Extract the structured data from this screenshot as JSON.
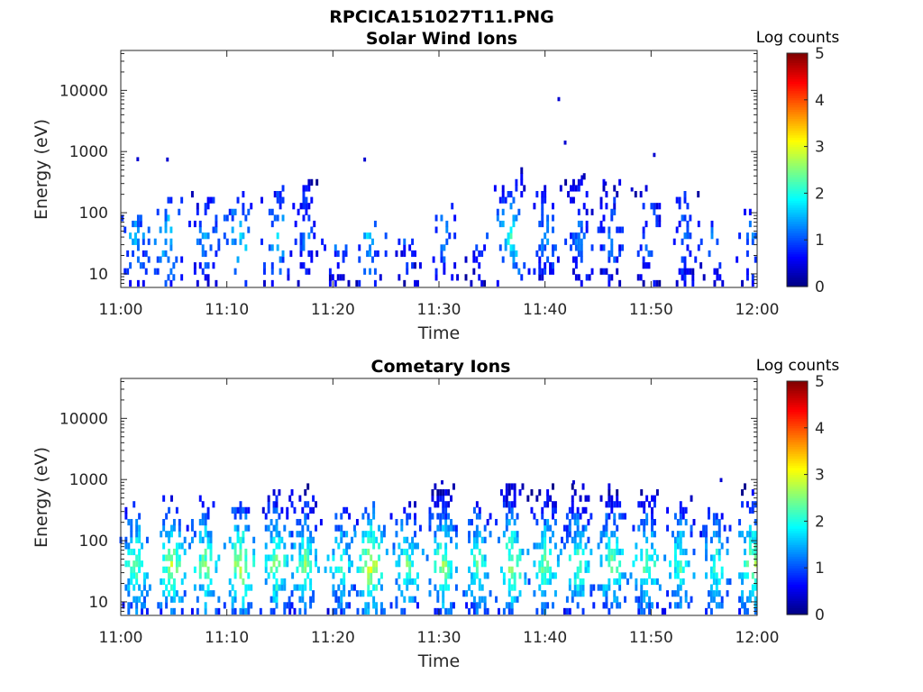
{
  "figure_title": "RPCICA151027T11.PNG",
  "chart_data": [
    {
      "type": "heatmap",
      "title": "Solar Wind Ions",
      "xlabel": "Time",
      "ylabel": "Energy (eV)",
      "x_ticks": [
        "11:00",
        "11:10",
        "11:20",
        "11:30",
        "11:40",
        "11:50",
        "12:00"
      ],
      "x_range_minutes": [
        0,
        60
      ],
      "y_scale": "log",
      "y_ticks": [
        "10",
        "100",
        "1000",
        "10000"
      ],
      "y_range": [
        6,
        45000
      ],
      "colorbar": {
        "label": "Log counts",
        "range": [
          0,
          5
        ],
        "ticks": [
          "0",
          "1",
          "2",
          "3",
          "4",
          "5"
        ],
        "colormap": "jet"
      },
      "activity_bursts": [
        {
          "t": 1.4,
          "emax": 90,
          "peak": 1.5
        },
        {
          "t": 4.5,
          "emax": 200,
          "peak": 1.8
        },
        {
          "t": 8.0,
          "emax": 220,
          "peak": 1.3
        },
        {
          "t": 11.3,
          "emax": 210,
          "peak": 1.8
        },
        {
          "t": 14.8,
          "emax": 330,
          "peak": 1.6
        },
        {
          "t": 17.5,
          "emax": 320,
          "peak": 1.2
        },
        {
          "t": 20.5,
          "emax": 30,
          "peak": 1.2
        },
        {
          "t": 23.5,
          "emax": 60,
          "peak": 1.6
        },
        {
          "t": 27.0,
          "emax": 40,
          "peak": 1.0
        },
        {
          "t": 30.5,
          "emax": 120,
          "peak": 1.3
        },
        {
          "t": 33.8,
          "emax": 45,
          "peak": 1.0
        },
        {
          "t": 36.8,
          "emax": 400,
          "peak": 2.0
        },
        {
          "t": 40.0,
          "emax": 250,
          "peak": 1.3
        },
        {
          "t": 43.2,
          "emax": 350,
          "peak": 1.2
        },
        {
          "t": 46.3,
          "emax": 280,
          "peak": 1.2
        },
        {
          "t": 49.8,
          "emax": 200,
          "peak": 1.2
        },
        {
          "t": 53.2,
          "emax": 220,
          "peak": 1.2
        },
        {
          "t": 56.0,
          "emax": 60,
          "peak": 1.2
        },
        {
          "t": 59.6,
          "emax": 100,
          "peak": 1.3
        }
      ],
      "isolated_points": [
        {
          "t": 1.6,
          "e": 750
        },
        {
          "t": 4.4,
          "e": 740
        },
        {
          "t": 23.0,
          "e": 740
        },
        {
          "t": 41.3,
          "e": 7200
        },
        {
          "t": 41.9,
          "e": 1400
        },
        {
          "t": 50.3,
          "e": 880
        },
        {
          "t": 43.5,
          "e": 380
        },
        {
          "t": 48.2,
          "e": 240
        },
        {
          "t": 45.7,
          "e": 300
        }
      ]
    },
    {
      "type": "heatmap",
      "title": "Cometary Ions",
      "xlabel": "Time",
      "ylabel": "Energy (eV)",
      "x_ticks": [
        "11:00",
        "11:10",
        "11:20",
        "11:30",
        "11:40",
        "11:50",
        "12:00"
      ],
      "x_range_minutes": [
        0,
        60
      ],
      "y_scale": "log",
      "y_ticks": [
        "10",
        "100",
        "1000",
        "10000"
      ],
      "y_range": [
        6,
        45000
      ],
      "colorbar": {
        "label": "Log counts",
        "range": [
          0,
          5
        ],
        "ticks": [
          "0",
          "1",
          "2",
          "3",
          "4",
          "5"
        ],
        "colormap": "jet"
      },
      "activity_bursts": [
        {
          "t": 1.5,
          "emax": 350,
          "peak": 2.4
        },
        {
          "t": 4.8,
          "emax": 450,
          "peak": 2.7
        },
        {
          "t": 8.0,
          "emax": 480,
          "peak": 2.5
        },
        {
          "t": 11.3,
          "emax": 400,
          "peak": 2.9
        },
        {
          "t": 14.7,
          "emax": 620,
          "peak": 2.6
        },
        {
          "t": 17.4,
          "emax": 650,
          "peak": 2.5
        },
        {
          "t": 20.8,
          "emax": 280,
          "peak": 2.2
        },
        {
          "t": 23.6,
          "emax": 420,
          "peak": 3.0
        },
        {
          "t": 27.0,
          "emax": 400,
          "peak": 2.4
        },
        {
          "t": 30.4,
          "emax": 900,
          "peak": 2.6
        },
        {
          "t": 33.6,
          "emax": 420,
          "peak": 2.3
        },
        {
          "t": 36.9,
          "emax": 800,
          "peak": 2.7
        },
        {
          "t": 40.0,
          "emax": 650,
          "peak": 2.5
        },
        {
          "t": 43.1,
          "emax": 800,
          "peak": 2.4
        },
        {
          "t": 46.3,
          "emax": 700,
          "peak": 2.5
        },
        {
          "t": 49.6,
          "emax": 600,
          "peak": 2.4
        },
        {
          "t": 52.8,
          "emax": 420,
          "peak": 2.3
        },
        {
          "t": 56.2,
          "emax": 350,
          "peak": 2.2
        },
        {
          "t": 59.6,
          "emax": 800,
          "peak": 2.7
        }
      ],
      "isolated_points": [
        {
          "t": 30.3,
          "e": 900
        },
        {
          "t": 42.7,
          "e": 900
        },
        {
          "t": 56.6,
          "e": 980
        }
      ]
    }
  ]
}
